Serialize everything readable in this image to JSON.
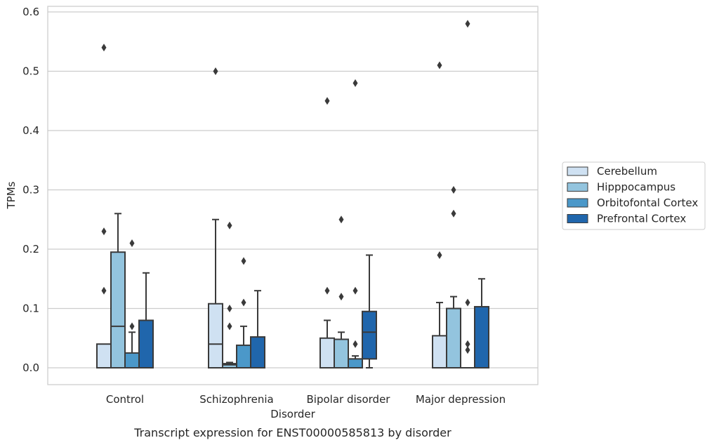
{
  "chart_data": {
    "type": "box",
    "title": "",
    "caption": "Transcript expression for ENST00000585813 by disorder",
    "xlabel": "Disorder",
    "ylabel": "TPMs",
    "ylim": [
      -0.028,
      0.61
    ],
    "yticks": [
      0.0,
      0.1,
      0.2,
      0.3,
      0.4,
      0.5,
      0.6
    ],
    "ytick_labels": [
      "0.0",
      "0.1",
      "0.2",
      "0.3",
      "0.4",
      "0.5",
      "0.6"
    ],
    "grid": "horizontal",
    "legend_position": "right",
    "categories": [
      "Control",
      "Schizophrenia",
      "Bipolar disorder",
      "Major depression"
    ],
    "series": [
      {
        "name": "Cerebellum",
        "color": "#cfe1f2",
        "boxes": [
          {
            "q1": 0.0,
            "median": 0.0,
            "q3": 0.04,
            "whisker_low": 0.0,
            "whisker_high": 0.04,
            "outliers": [
              0.13,
              0.23,
              0.54
            ]
          },
          {
            "q1": 0.0,
            "median": 0.04,
            "q3": 0.108,
            "whisker_low": 0.0,
            "whisker_high": 0.25,
            "outliers": [
              0.5
            ]
          },
          {
            "q1": 0.0,
            "median": 0.0,
            "q3": 0.05,
            "whisker_low": 0.0,
            "whisker_high": 0.08,
            "outliers": [
              0.13,
              0.45
            ]
          },
          {
            "q1": 0.0,
            "median": 0.0,
            "q3": 0.054,
            "whisker_low": 0.0,
            "whisker_high": 0.11,
            "outliers": [
              0.19,
              0.51
            ]
          }
        ]
      },
      {
        "name": "Hipppocampus",
        "color": "#93c4de",
        "boxes": [
          {
            "q1": 0.0,
            "median": 0.07,
            "q3": 0.195,
            "whisker_low": 0.0,
            "whisker_high": 0.26,
            "outliers": []
          },
          {
            "q1": 0.0,
            "median": 0.005,
            "q3": 0.007,
            "whisker_low": 0.0,
            "whisker_high": 0.009,
            "outliers": [
              0.07,
              0.1,
              0.24
            ]
          },
          {
            "q1": 0.0,
            "median": 0.0,
            "q3": 0.048,
            "whisker_low": 0.0,
            "whisker_high": 0.06,
            "outliers": [
              0.12,
              0.25
            ]
          },
          {
            "q1": 0.0,
            "median": 0.0,
            "q3": 0.1,
            "whisker_low": 0.0,
            "whisker_high": 0.12,
            "outliers": [
              0.26,
              0.3
            ]
          }
        ]
      },
      {
        "name": "Orbitofontal Cortex",
        "color": "#4b98c9",
        "boxes": [
          {
            "q1": 0.0,
            "median": 0.0,
            "q3": 0.025,
            "whisker_low": 0.0,
            "whisker_high": 0.06,
            "outliers": [
              0.07,
              0.21
            ]
          },
          {
            "q1": 0.0,
            "median": 0.0,
            "q3": 0.038,
            "whisker_low": 0.0,
            "whisker_high": 0.07,
            "outliers": [
              0.11,
              0.18
            ]
          },
          {
            "q1": 0.0,
            "median": 0.0,
            "q3": 0.015,
            "whisker_low": 0.0,
            "whisker_high": 0.02,
            "outliers": [
              0.04,
              0.13,
              0.48
            ]
          },
          {
            "q1": 0.0,
            "median": 0.0,
            "q3": 0.0,
            "whisker_low": 0.0,
            "whisker_high": 0.0,
            "outliers": [
              0.03,
              0.04,
              0.11,
              0.58
            ]
          }
        ]
      },
      {
        "name": "Prefrontal Cortex",
        "color": "#2066ac",
        "boxes": [
          {
            "q1": 0.0,
            "median": 0.0,
            "q3": 0.08,
            "whisker_low": 0.0,
            "whisker_high": 0.16,
            "outliers": []
          },
          {
            "q1": 0.0,
            "median": 0.0,
            "q3": 0.052,
            "whisker_low": 0.0,
            "whisker_high": 0.13,
            "outliers": []
          },
          {
            "q1": 0.015,
            "median": 0.06,
            "q3": 0.095,
            "whisker_low": 0.0,
            "whisker_high": 0.19,
            "outliers": []
          },
          {
            "q1": 0.0,
            "median": 0.0,
            "q3": 0.103,
            "whisker_low": 0.0,
            "whisker_high": 0.15,
            "outliers": []
          }
        ]
      }
    ],
    "colors": {
      "grid": "#cccccc",
      "frame": "#cccccc",
      "box_edge": "#3a3a3a",
      "outlier": "#3a3a3a"
    }
  }
}
